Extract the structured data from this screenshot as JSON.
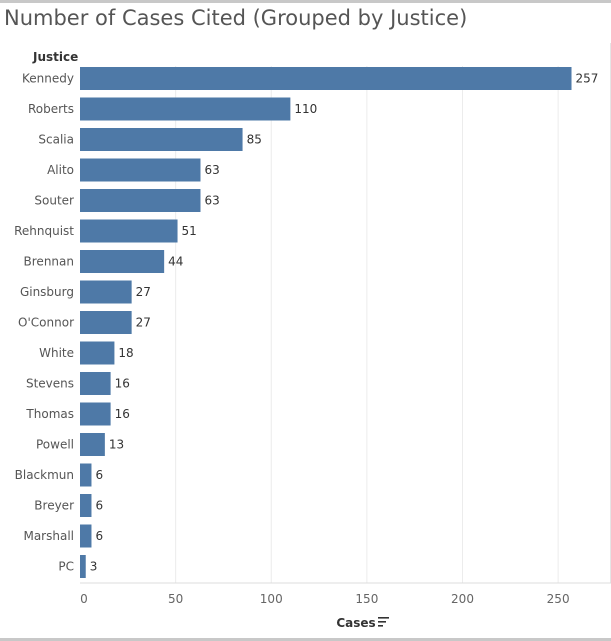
{
  "chart_data": {
    "type": "bar",
    "orientation": "horizontal",
    "title": "Number of Cases Cited (Grouped by Justice)",
    "row_header": "Justice",
    "xlabel": "Cases",
    "xlim": [
      0,
      275
    ],
    "xticks": [
      0,
      50,
      100,
      150,
      200,
      250
    ],
    "categories": [
      "Kennedy",
      "Roberts",
      "Scalia",
      "Alito",
      "Souter",
      "Rehnquist",
      "Brennan",
      "Ginsburg",
      "O'Connor",
      "White",
      "Stevens",
      "Thomas",
      "Powell",
      "Blackmun",
      "Breyer",
      "Marshall",
      "PC"
    ],
    "values": [
      257,
      110,
      85,
      63,
      63,
      51,
      44,
      27,
      27,
      18,
      16,
      16,
      13,
      6,
      6,
      6,
      3
    ],
    "bar_color": "#4e79a7",
    "grid": true,
    "sort_icon": "sort-descending-icon"
  }
}
